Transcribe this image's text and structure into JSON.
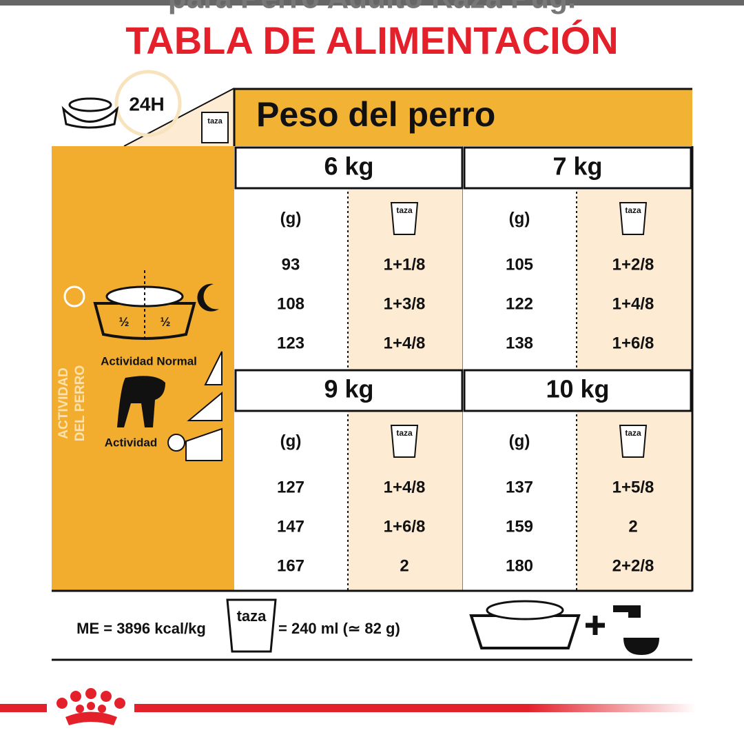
{
  "header": {
    "cut_text": "para Perro Adulto Raza Pug.",
    "title": "TABLA DE ALIMENTACIÓN"
  },
  "corner": {
    "hours": "24H",
    "cup": "taza"
  },
  "weight_header": "Peso del perro",
  "side": {
    "vertical_label": [
      "ACTIVIDAD",
      "DEL PERRO"
    ],
    "half_left": "½",
    "half_right": "½",
    "activity_normal": "Actividad Normal",
    "activity_plus": "Actividad"
  },
  "blocks": [
    {
      "weight": "6 kg",
      "grams_label": "(g)",
      "cup_label": "taza",
      "rows": [
        [
          "93",
          "1+1/8"
        ],
        [
          "108",
          "1+3/8"
        ],
        [
          "123",
          "1+4/8"
        ]
      ]
    },
    {
      "weight": "7 kg",
      "grams_label": "(g)",
      "cup_label": "taza",
      "rows": [
        [
          "105",
          "1+2/8"
        ],
        [
          "122",
          "1+4/8"
        ],
        [
          "138",
          "1+6/8"
        ]
      ]
    },
    {
      "weight": "9 kg",
      "grams_label": "(g)",
      "cup_label": "taza",
      "rows": [
        [
          "127",
          "1+4/8"
        ],
        [
          "147",
          "1+6/8"
        ],
        [
          "167",
          "2"
        ]
      ]
    },
    {
      "weight": "10 kg",
      "grams_label": "(g)",
      "cup_label": "taza",
      "rows": [
        [
          "137",
          "1+5/8"
        ],
        [
          "159",
          "2"
        ],
        [
          "180",
          "2+2/8"
        ]
      ]
    }
  ],
  "footer": {
    "energy": "ME = 3896 kcal/kg",
    "cup": "taza",
    "equivalence": "= 240 ml (≃ 82 g)"
  }
}
